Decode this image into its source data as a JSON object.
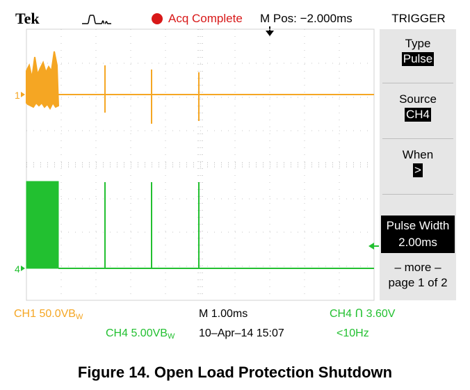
{
  "header": {
    "brand": "Tek",
    "trigger_icon": "pulse-trigger-icon",
    "acq_status": "Acq Complete",
    "m_pos": "M Pos: −2.000ms"
  },
  "trigger_menu": {
    "title": "TRIGGER",
    "type_label": "Type",
    "type_value": "Pulse",
    "source_label": "Source",
    "source_value": "CH4",
    "when_label": "When",
    "when_value": ">",
    "pulse_width_label": "Pulse Width",
    "pulse_width_value": "2.00ms",
    "more_label": "– more –",
    "page_label": "page 1 of 2"
  },
  "channels": {
    "ch1_marker": "1",
    "ch4_marker": "4"
  },
  "footer": {
    "ch1_scale": "CH1  50.0VB",
    "ch1_bw": "W",
    "ch4_scale": "CH4  5.00VB",
    "ch4_bw": "W",
    "timebase": "M 1.00ms",
    "date": "10–Apr–14 15:07",
    "trigger_readout": "CH4 Ո 3.60V",
    "freq": "<10Hz"
  },
  "colors": {
    "ch1": "#f5a623",
    "ch4": "#22c030",
    "acq": "#d81818"
  },
  "caption": "Figure 14. Open Load Protection Shutdown"
}
